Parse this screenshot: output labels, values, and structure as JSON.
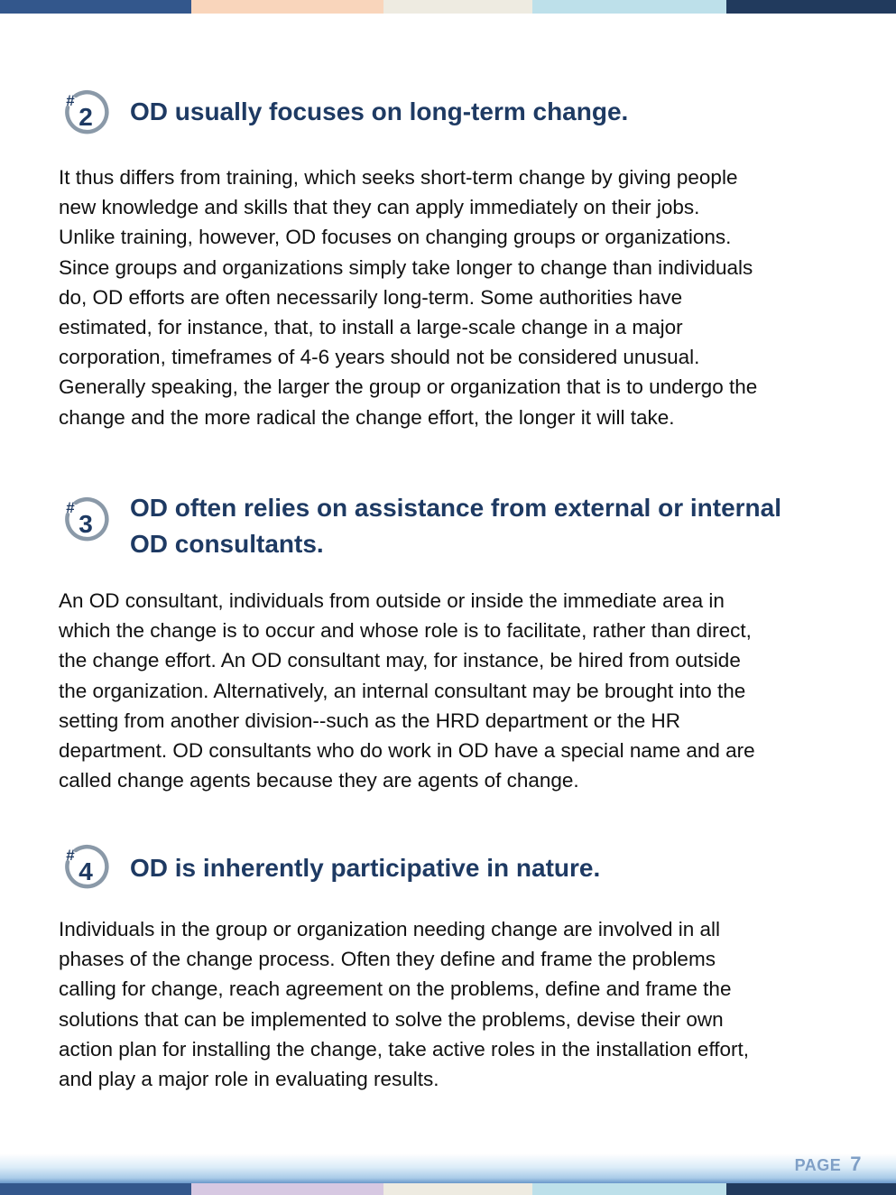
{
  "colors": {
    "heading": "#1e3a63",
    "badge_ring": "#8a99a8",
    "badge_text": "#1e3a63",
    "stripe": [
      "#33578c",
      "#f9d5bb",
      "#eeebe1",
      "#bde0ea",
      "#213a5d"
    ],
    "bottom_stripe": [
      "#33578c",
      "#d7c8e2",
      "#eeebe1",
      "#bde0ea",
      "#213a5d"
    ],
    "page_label": "#7f9fc6"
  },
  "sections": [
    {
      "badge": {
        "hash": "#",
        "number": "2"
      },
      "heading": "OD usually focuses on long-term change.",
      "body": "It thus differs from training, which seeks short-term change by giving people\nnew knowledge and skills that they can apply immediately on their jobs.\nUnlike training, however, OD focuses on changing groups or organizations.\nSince groups and organizations simply take longer to change than individuals\ndo, OD efforts are often necessarily long-term.  Some authorities have\nestimated, for instance, that, to install a large-scale change in a major\ncorporation, timeframes of 4-6 years should not be considered unusual.\nGenerally speaking, the larger the group or organization that is to undergo the\nchange and the more radical the change effort, the longer it will take."
    },
    {
      "badge": {
        "hash": "#",
        "number": "3"
      },
      "heading": "OD often relies on assistance from external or internal\nOD consultants.",
      "body": "An OD consultant, individuals from outside or inside the immediate area in\nwhich the change is to occur and whose role is to facilitate, rather than direct,\nthe change effort. An OD consultant may, for instance, be hired from outside\nthe organization. Alternatively, an internal consultant may be brought into the\nsetting from another division--such as the HRD department or the HR\ndepartment. OD consultants who do work in OD have a special name and are\ncalled change agents because they are agents of change."
    },
    {
      "badge": {
        "hash": "#",
        "number": "4"
      },
      "heading": "OD is inherently participative in nature.",
      "body": "Individuals in the group or organization needing change are involved in all\nphases of the change process.  Often they define and frame the problems\ncalling for change, reach agreement on the problems, define and frame the\nsolutions that can be implemented to solve the problems, devise their own\naction plan for installing the change, take active roles in the installation effort,\nand play a major role in evaluating results."
    }
  ],
  "footer": {
    "page_label": "PAGE",
    "page_number": "7"
  }
}
